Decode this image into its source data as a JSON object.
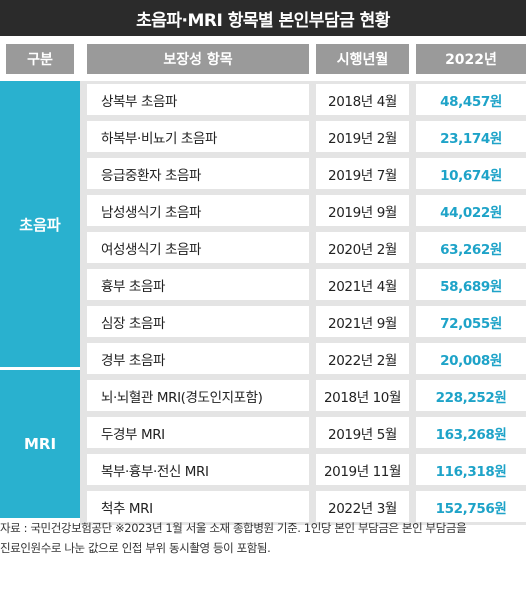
{
  "title": "초음파·MRI 항목별 본인부담금 현황",
  "headers": {
    "category": "구분",
    "item": "보장성 항목",
    "date": "시행년월",
    "year": "2022년"
  },
  "groups": [
    {
      "name": "초음파"
    },
    {
      "name": "MRI"
    }
  ],
  "rows": [
    {
      "item": "상복부 초음파",
      "date": "2018년 4월",
      "cost": "48,457원"
    },
    {
      "item": "하복부·비뇨기 초음파",
      "date": "2019년 2월",
      "cost": "23,174원"
    },
    {
      "item": "응급중환자 초음파",
      "date": "2019년 7월",
      "cost": "10,674원"
    },
    {
      "item": "남성생식기 초음파",
      "date": "2019년 9월",
      "cost": "44,022원"
    },
    {
      "item": "여성생식기 초음파",
      "date": "2020년 2월",
      "cost": "63,262원"
    },
    {
      "item": "흉부 초음파",
      "date": "2021년 4월",
      "cost": "58,689원"
    },
    {
      "item": "심장 초음파",
      "date": "2021년 9월",
      "cost": "72,055원"
    },
    {
      "item": "경부 초음파",
      "date": "2022년 2월",
      "cost": "20,008원"
    },
    {
      "item": "뇌·뇌혈관 MRI(경도인지포함)",
      "date": "2018년 10월",
      "cost": "228,252원"
    },
    {
      "item": "두경부 MRI",
      "date": "2019년 5월",
      "cost": "163,268원"
    },
    {
      "item": "복부·흉부·전신 MRI",
      "date": "2019년 11월",
      "cost": "116,318원"
    },
    {
      "item": "척추 MRI",
      "date": "2022년 3월",
      "cost": "152,756원"
    }
  ],
  "footer": {
    "line1": "자료 : 국민건강보험공단 ※2023년 1월 서울 소재 종합병원 기준. 1인당 본인 부담금은 본인 부담금을",
    "line2": "진료인원수로 나눈 값으로 인접 부위 동시촬영 등이 포함됨."
  }
}
